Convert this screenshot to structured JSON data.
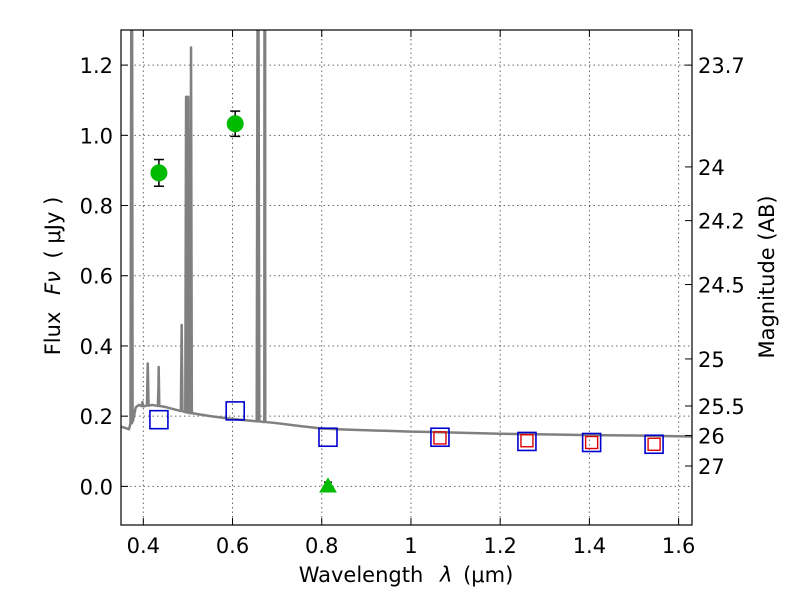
{
  "chart_data": {
    "type": "scatter",
    "xlabel": "Wavelength",
    "xlabel_symbol": "λ",
    "xlabel_unit": "(μm)",
    "ylabel": "Flux",
    "ylabel_symbol": "Fν",
    "ylabel_unit": "( μJy )",
    "y2label": "Magnitude (AB)",
    "xlim": [
      0.35,
      1.63
    ],
    "ylim": [
      -0.11,
      1.3
    ],
    "x_ticks": [
      0.4,
      0.6,
      0.8,
      1.0,
      1.2,
      1.4,
      1.6
    ],
    "x_tick_labels": [
      "0.4",
      "0.6",
      "0.8",
      "1",
      "1.2",
      "1.4",
      "1.6"
    ],
    "y_ticks": [
      0.0,
      0.2,
      0.4,
      0.6,
      0.8,
      1.0,
      1.2
    ],
    "y_tick_labels": [
      "0.0",
      "0.2",
      "0.4",
      "0.6",
      "0.8",
      "1.0",
      "1.2"
    ],
    "magnitude_ticks": [
      {
        "label": "23.7",
        "flux": 1.2
      },
      {
        "label": "24",
        "flux": 0.91
      },
      {
        "label": "24.2",
        "flux": 0.757
      },
      {
        "label": "24.5",
        "flux": 0.575
      },
      {
        "label": "25",
        "flux": 0.363
      },
      {
        "label": "25.5",
        "flux": 0.229
      },
      {
        "label": "26",
        "flux": 0.145
      },
      {
        "label": "27",
        "flux": 0.058
      }
    ],
    "grid": true,
    "observed_points": [
      {
        "x": 0.435,
        "y": 0.893,
        "yerr": 0.038
      },
      {
        "x": 0.606,
        "y": 1.033,
        "yerr": 0.036
      }
    ],
    "upper_limit_points": [
      {
        "x": 0.814,
        "y": 0.0,
        "yerr": 0.012
      }
    ],
    "model_points": [
      {
        "x": 0.435,
        "y": 0.19
      },
      {
        "x": 0.606,
        "y": 0.215
      },
      {
        "x": 0.814,
        "y": 0.14
      },
      {
        "x": 1.065,
        "y": 0.14
      },
      {
        "x": 1.26,
        "y": 0.128
      },
      {
        "x": 1.405,
        "y": 0.125
      },
      {
        "x": 1.545,
        "y": 0.12
      }
    ],
    "inner_points": [
      {
        "x": 1.065,
        "y": 0.138
      },
      {
        "x": 1.26,
        "y": 0.13
      },
      {
        "x": 1.405,
        "y": 0.125
      },
      {
        "x": 1.545,
        "y": 0.12
      }
    ],
    "spectrum": {
      "continuum": [
        [
          0.35,
          0.17
        ],
        [
          0.368,
          0.163
        ],
        [
          0.376,
          0.19
        ],
        [
          0.383,
          0.225
        ],
        [
          0.39,
          0.232
        ],
        [
          0.4,
          0.228
        ],
        [
          0.42,
          0.232
        ],
        [
          0.45,
          0.226
        ],
        [
          0.5,
          0.21
        ],
        [
          0.55,
          0.2
        ],
        [
          0.6,
          0.192
        ],
        [
          0.65,
          0.186
        ],
        [
          0.7,
          0.18
        ],
        [
          0.75,
          0.172
        ],
        [
          0.8,
          0.165
        ],
        [
          0.85,
          0.162
        ],
        [
          0.9,
          0.16
        ],
        [
          0.95,
          0.158
        ],
        [
          1.0,
          0.156
        ],
        [
          1.05,
          0.155
        ],
        [
          1.1,
          0.153
        ],
        [
          1.2,
          0.15
        ],
        [
          1.3,
          0.148
        ],
        [
          1.4,
          0.146
        ],
        [
          1.5,
          0.145
        ],
        [
          1.58,
          0.143
        ],
        [
          1.63,
          0.142
        ]
      ],
      "lines": [
        {
          "x": 0.373,
          "peak": 1.3
        },
        {
          "x": 0.375,
          "peak": 1.3
        },
        {
          "x": 0.398,
          "peak": 0.24
        },
        {
          "x": 0.41,
          "peak": 0.35
        },
        {
          "x": 0.434,
          "peak": 0.285
        },
        {
          "x": 0.4345,
          "peak": 0.34
        },
        {
          "x": 0.486,
          "peak": 0.46
        },
        {
          "x": 0.4959,
          "peak": 1.11
        },
        {
          "x": 0.5007,
          "peak": 1.11
        },
        {
          "x": 0.507,
          "peak": 1.25
        },
        {
          "x": 0.656,
          "peak": 1.3
        },
        {
          "x": 0.6583,
          "peak": 1.3
        },
        {
          "x": 0.6716,
          "peak": 1.3
        },
        {
          "x": 0.6731,
          "peak": 1.3
        }
      ]
    },
    "colors": {
      "spectrum": "#808080",
      "observed": "#00bb00",
      "model": "#0000cc",
      "inner": "#dd0000"
    }
  }
}
